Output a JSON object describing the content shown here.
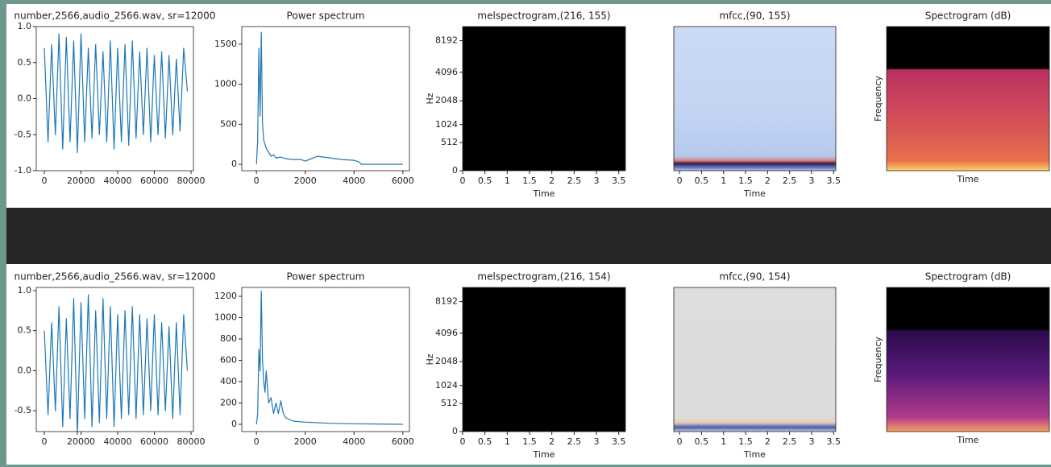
{
  "chart_data": [
    {
      "type": "line",
      "title": "number,2566,audio_2566.wav, sr=12000",
      "color": "#1f77b4",
      "x": [
        0,
        2000,
        4000,
        6000,
        8000,
        10000,
        12000,
        14000,
        16000,
        18000,
        20000,
        22000,
        24000,
        26000,
        28000,
        30000,
        32000,
        34000,
        36000,
        38000,
        40000,
        42000,
        44000,
        46000,
        48000,
        50000,
        52000,
        54000,
        56000,
        58000,
        60000,
        62000,
        64000,
        66000,
        68000,
        70000,
        72000,
        74000,
        76000,
        78000
      ],
      "values": [
        0.7,
        -0.6,
        0.75,
        -0.5,
        0.9,
        -0.7,
        0.85,
        -0.6,
        0.8,
        -0.75,
        0.9,
        -0.6,
        0.7,
        -0.55,
        0.75,
        -0.5,
        0.65,
        -0.6,
        0.8,
        -0.7,
        0.7,
        -0.6,
        0.75,
        -0.65,
        0.8,
        -0.55,
        0.65,
        -0.5,
        0.7,
        -0.6,
        0.6,
        -0.5,
        0.65,
        -0.55,
        0.6,
        -0.5,
        0.55,
        -0.45,
        0.7,
        0.1
      ],
      "xlim": [
        -4400,
        81300
      ],
      "xticks": [
        0,
        20000,
        40000,
        60000,
        80000
      ],
      "ylim": [
        -1,
        1
      ],
      "yticks": [
        {
          "value": 1,
          "label": "1.0"
        },
        {
          "value": 0.5,
          "label": "0.5"
        },
        {
          "value": 0,
          "label": "0.0"
        },
        {
          "value": -0.5,
          "label": "-0.5"
        },
        {
          "value": -1,
          "label": "-1.0"
        }
      ]
    },
    {
      "type": "line",
      "title": "Power spectrum",
      "color": "#1f77b4",
      "x": [
        0,
        50,
        100,
        150,
        200,
        250,
        300,
        350,
        400,
        500,
        600,
        700,
        800,
        1000,
        1200,
        1500,
        1800,
        2000,
        2500,
        3000,
        3500,
        4000,
        4200,
        4300,
        5000,
        6000
      ],
      "values": [
        0,
        300,
        1450,
        600,
        1650,
        500,
        300,
        250,
        200,
        150,
        100,
        120,
        80,
        90,
        70,
        60,
        60,
        40,
        100,
        80,
        60,
        50,
        30,
        0,
        0,
        0
      ],
      "xlim": [
        -600,
        6270
      ],
      "xticks": [
        0,
        2000,
        4000,
        6000
      ],
      "ylim": [
        -80,
        1720
      ],
      "yticks": [
        0,
        500,
        1000,
        1500
      ]
    },
    {
      "type": "image",
      "title": "melspectrogram,(216, 155)",
      "xlabel": "Time",
      "ylabel": "Hz",
      "yscale": "mel",
      "xlim": [
        0,
        3.65
      ],
      "xticks": [
        0,
        0.5,
        1,
        1.5,
        2,
        2.5,
        3,
        3.5
      ],
      "ylim": [
        0,
        11025
      ],
      "yticks": [
        0,
        512,
        1024,
        2048,
        4096,
        8192
      ]
    },
    {
      "type": "image",
      "title": "mfcc,(90, 155)",
      "xlabel": "Time",
      "xlim": [
        -0.13,
        3.55
      ],
      "xticks": [
        0,
        0.5,
        1,
        1.5,
        2,
        2.5,
        3,
        3.5
      ]
    },
    {
      "type": "image",
      "title": "Spectrogram (dB)",
      "xlabel": "Time",
      "ylabel": "Frequency"
    },
    {
      "type": "line",
      "title": "number,2566,audio_2566.wav, sr=12000",
      "color": "#1f77b4",
      "x": [
        0,
        2000,
        4000,
        6000,
        8000,
        10000,
        12000,
        14000,
        16000,
        18000,
        20000,
        22000,
        24000,
        26000,
        28000,
        30000,
        32000,
        34000,
        36000,
        38000,
        40000,
        42000,
        44000,
        46000,
        48000,
        50000,
        52000,
        54000,
        56000,
        58000,
        60000,
        62000,
        64000,
        66000,
        68000,
        70000,
        72000,
        74000,
        76000,
        78000
      ],
      "values": [
        0.5,
        -0.55,
        0.6,
        -0.5,
        0.8,
        -0.7,
        0.65,
        -0.6,
        0.9,
        -0.8,
        0.85,
        -0.6,
        0.95,
        -0.7,
        0.75,
        -0.65,
        0.9,
        -0.6,
        0.8,
        -0.7,
        0.7,
        -0.6,
        0.75,
        -0.55,
        0.8,
        -0.6,
        0.7,
        -0.55,
        0.65,
        -0.5,
        0.7,
        -0.55,
        0.6,
        -0.5,
        0.55,
        -0.6,
        0.6,
        -0.55,
        0.7,
        0
      ],
      "xlim": [
        -4400,
        81300
      ],
      "xticks": [
        0,
        20000,
        40000,
        60000,
        80000
      ],
      "ylim": [
        -0.76,
        1.04
      ],
      "yticks": [
        {
          "value": 1,
          "label": "1.0"
        },
        {
          "value": 0.5,
          "label": "0.5"
        },
        {
          "value": 0,
          "label": "0.0"
        },
        {
          "value": -0.5,
          "label": "-0.5"
        }
      ]
    },
    {
      "type": "line",
      "title": "Power spectrum",
      "color": "#1f77b4",
      "x": [
        0,
        50,
        100,
        150,
        200,
        250,
        300,
        350,
        400,
        500,
        600,
        700,
        800,
        900,
        1000,
        1100,
        1200,
        1500,
        2000,
        3000,
        4000,
        5000,
        6000
      ],
      "values": [
        0,
        100,
        700,
        500,
        1250,
        600,
        400,
        300,
        500,
        200,
        250,
        100,
        200,
        100,
        220,
        100,
        60,
        30,
        20,
        10,
        5,
        3,
        0
      ],
      "xlim": [
        -600,
        6270
      ],
      "xticks": [
        0,
        2000,
        4000,
        6000
      ],
      "ylim": [
        -68,
        1283
      ],
      "yticks": [
        0,
        200,
        400,
        600,
        800,
        1000,
        1200
      ]
    },
    {
      "type": "image",
      "title": "melspectrogram,(216, 154)",
      "xlabel": "Time",
      "ylabel": "Hz",
      "yscale": "mel",
      "xlim": [
        0,
        3.65
      ],
      "xticks": [
        0,
        0.5,
        1,
        1.5,
        2,
        2.5,
        3,
        3.5
      ],
      "ylim": [
        0,
        11025
      ],
      "yticks": [
        0,
        512,
        1024,
        2048,
        4096,
        8192
      ]
    },
    {
      "type": "image",
      "title": "mfcc,(90, 154)",
      "xlabel": "Time",
      "xlim": [
        -0.13,
        3.55
      ],
      "xticks": [
        0,
        0.5,
        1,
        1.5,
        2,
        2.5,
        3,
        3.5
      ]
    },
    {
      "type": "image",
      "title": "Spectrogram (dB)",
      "xlabel": "Time",
      "ylabel": "Frequency"
    }
  ]
}
